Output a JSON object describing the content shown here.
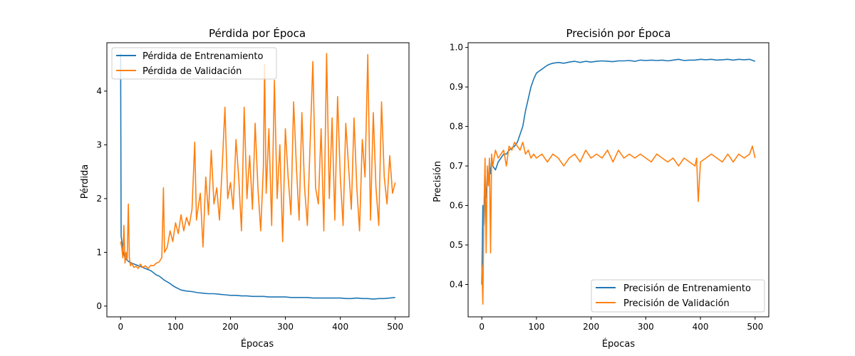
{
  "chart_data": [
    {
      "type": "line",
      "title": "Pérdida por Época",
      "xlabel": "Épocas",
      "ylabel": "Pérdida",
      "xlim": [
        -25,
        525
      ],
      "ylim": [
        -0.2,
        4.9
      ],
      "xticks": [
        0,
        100,
        200,
        300,
        400,
        500
      ],
      "yticks": [
        0,
        1,
        2,
        3,
        4
      ],
      "grid": false,
      "legend": "top-left",
      "series": [
        {
          "name": "Pérdida de Entrenamiento",
          "color": "#1f77b4",
          "x": [
            0,
            1,
            3,
            5,
            8,
            12,
            16,
            20,
            25,
            30,
            35,
            40,
            45,
            50,
            55,
            60,
            65,
            70,
            75,
            80,
            85,
            90,
            95,
            100,
            110,
            120,
            130,
            140,
            150,
            160,
            170,
            180,
            190,
            200,
            210,
            220,
            230,
            240,
            250,
            260,
            270,
            280,
            290,
            300,
            310,
            320,
            330,
            340,
            350,
            360,
            370,
            380,
            390,
            400,
            410,
            420,
            430,
            440,
            450,
            460,
            470,
            480,
            490,
            500
          ],
          "y": [
            4.7,
            1.3,
            1.15,
            1.0,
            0.9,
            0.85,
            0.82,
            0.8,
            0.78,
            0.76,
            0.74,
            0.72,
            0.7,
            0.68,
            0.66,
            0.62,
            0.58,
            0.56,
            0.52,
            0.48,
            0.45,
            0.42,
            0.38,
            0.35,
            0.3,
            0.28,
            0.27,
            0.25,
            0.24,
            0.23,
            0.23,
            0.22,
            0.21,
            0.2,
            0.2,
            0.19,
            0.19,
            0.18,
            0.18,
            0.18,
            0.17,
            0.17,
            0.17,
            0.17,
            0.16,
            0.16,
            0.16,
            0.16,
            0.15,
            0.15,
            0.15,
            0.15,
            0.15,
            0.15,
            0.14,
            0.14,
            0.15,
            0.14,
            0.14,
            0.13,
            0.14,
            0.14,
            0.15,
            0.16
          ]
        },
        {
          "name": "Pérdida de Validación",
          "color": "#ff7f0e",
          "x": [
            0,
            2,
            4,
            6,
            8,
            10,
            12,
            14,
            16,
            18,
            20,
            24,
            28,
            32,
            36,
            40,
            45,
            50,
            55,
            60,
            65,
            70,
            75,
            78,
            80,
            85,
            90,
            95,
            100,
            105,
            110,
            115,
            120,
            125,
            130,
            135,
            138,
            140,
            145,
            150,
            155,
            160,
            165,
            170,
            175,
            180,
            185,
            190,
            195,
            200,
            205,
            210,
            215,
            220,
            225,
            230,
            235,
            240,
            245,
            250,
            255,
            260,
            262,
            265,
            270,
            275,
            280,
            285,
            290,
            295,
            300,
            305,
            310,
            315,
            320,
            325,
            330,
            335,
            340,
            345,
            350,
            355,
            360,
            365,
            370,
            375,
            380,
            385,
            390,
            395,
            400,
            405,
            410,
            415,
            420,
            425,
            430,
            435,
            440,
            445,
            450,
            455,
            460,
            465,
            470,
            475,
            480,
            485,
            490,
            495,
            500
          ],
          "y": [
            1.2,
            1.1,
            0.9,
            1.5,
            0.8,
            1.0,
            0.85,
            1.9,
            0.9,
            0.75,
            0.8,
            0.72,
            0.74,
            0.7,
            0.78,
            0.72,
            0.75,
            0.7,
            0.76,
            0.75,
            0.8,
            0.82,
            0.9,
            2.2,
            1.0,
            1.1,
            1.4,
            1.2,
            1.55,
            1.35,
            1.7,
            1.4,
            1.65,
            1.5,
            1.8,
            3.05,
            1.6,
            1.75,
            2.1,
            1.1,
            2.4,
            1.7,
            2.9,
            1.9,
            2.2,
            1.6,
            2.6,
            3.7,
            2.0,
            2.3,
            1.8,
            3.1,
            2.4,
            1.4,
            3.7,
            2.0,
            2.8,
            1.8,
            3.4,
            2.2,
            1.4,
            2.6,
            4.5,
            2.1,
            3.3,
            1.5,
            4.2,
            2.0,
            3.0,
            1.2,
            3.3,
            2.4,
            1.7,
            3.8,
            2.6,
            1.6,
            3.6,
            2.2,
            1.5,
            3.0,
            4.55,
            2.2,
            1.9,
            3.3,
            1.4,
            4.7,
            2.0,
            3.5,
            1.6,
            3.9,
            2.4,
            1.5,
            3.4,
            2.6,
            1.8,
            3.5,
            2.2,
            1.4,
            3.1,
            2.4,
            4.68,
            1.6,
            3.6,
            2.2,
            1.5,
            3.8,
            2.4,
            1.9,
            2.8,
            2.1,
            2.3
          ]
        }
      ]
    },
    {
      "type": "line",
      "title": "Precisión por Época",
      "xlabel": "Épocas",
      "ylabel": "Precisión",
      "xlim": [
        -25,
        525
      ],
      "ylim": [
        0.318,
        1.012
      ],
      "xticks": [
        0,
        100,
        200,
        300,
        400,
        500
      ],
      "yticks": [
        0.4,
        0.5,
        0.6,
        0.7,
        0.8,
        0.9,
        1.0
      ],
      "grid": false,
      "legend": "bottom-right",
      "series": [
        {
          "name": "Precisión de Entrenamiento",
          "color": "#1f77b4",
          "x": [
            0,
            2,
            4,
            6,
            8,
            10,
            12,
            14,
            16,
            18,
            20,
            25,
            30,
            35,
            40,
            45,
            50,
            55,
            60,
            65,
            70,
            75,
            80,
            85,
            90,
            95,
            100,
            105,
            110,
            115,
            120,
            125,
            130,
            140,
            150,
            160,
            170,
            180,
            190,
            200,
            210,
            220,
            230,
            240,
            250,
            260,
            270,
            280,
            290,
            300,
            310,
            320,
            330,
            340,
            350,
            360,
            370,
            380,
            390,
            400,
            410,
            420,
            430,
            440,
            450,
            460,
            470,
            480,
            490,
            500
          ],
          "y": [
            0.4,
            0.6,
            0.55,
            0.65,
            0.62,
            0.68,
            0.66,
            0.7,
            0.68,
            0.72,
            0.7,
            0.69,
            0.71,
            0.72,
            0.73,
            0.73,
            0.74,
            0.745,
            0.75,
            0.76,
            0.78,
            0.8,
            0.84,
            0.87,
            0.9,
            0.92,
            0.935,
            0.94,
            0.945,
            0.95,
            0.955,
            0.958,
            0.96,
            0.962,
            0.96,
            0.963,
            0.965,
            0.962,
            0.965,
            0.963,
            0.965,
            0.966,
            0.965,
            0.964,
            0.966,
            0.966,
            0.967,
            0.965,
            0.968,
            0.967,
            0.968,
            0.967,
            0.968,
            0.966,
            0.968,
            0.97,
            0.967,
            0.968,
            0.968,
            0.97,
            0.969,
            0.97,
            0.968,
            0.969,
            0.97,
            0.968,
            0.97,
            0.969,
            0.97,
            0.965
          ]
        },
        {
          "name": "Precisión de Validación",
          "color": "#ff7f0e",
          "x": [
            0,
            2,
            4,
            6,
            8,
            10,
            12,
            14,
            16,
            18,
            20,
            25,
            30,
            35,
            40,
            45,
            50,
            55,
            60,
            65,
            70,
            75,
            80,
            85,
            90,
            95,
            100,
            110,
            120,
            130,
            140,
            150,
            160,
            170,
            180,
            190,
            200,
            210,
            220,
            230,
            240,
            250,
            260,
            270,
            280,
            290,
            300,
            310,
            320,
            330,
            340,
            350,
            360,
            370,
            380,
            390,
            393,
            396,
            400,
            410,
            420,
            430,
            440,
            450,
            460,
            470,
            480,
            490,
            495,
            500
          ],
          "y": [
            0.45,
            0.35,
            0.6,
            0.72,
            0.48,
            0.7,
            0.65,
            0.72,
            0.48,
            0.73,
            0.7,
            0.74,
            0.72,
            0.73,
            0.74,
            0.7,
            0.75,
            0.74,
            0.76,
            0.75,
            0.74,
            0.76,
            0.73,
            0.74,
            0.72,
            0.73,
            0.72,
            0.73,
            0.71,
            0.73,
            0.72,
            0.7,
            0.72,
            0.73,
            0.71,
            0.74,
            0.72,
            0.73,
            0.72,
            0.74,
            0.71,
            0.74,
            0.72,
            0.73,
            0.72,
            0.73,
            0.72,
            0.71,
            0.73,
            0.72,
            0.71,
            0.72,
            0.7,
            0.72,
            0.71,
            0.7,
            0.72,
            0.61,
            0.71,
            0.72,
            0.73,
            0.72,
            0.71,
            0.73,
            0.71,
            0.73,
            0.72,
            0.73,
            0.75,
            0.72
          ]
        }
      ]
    }
  ]
}
